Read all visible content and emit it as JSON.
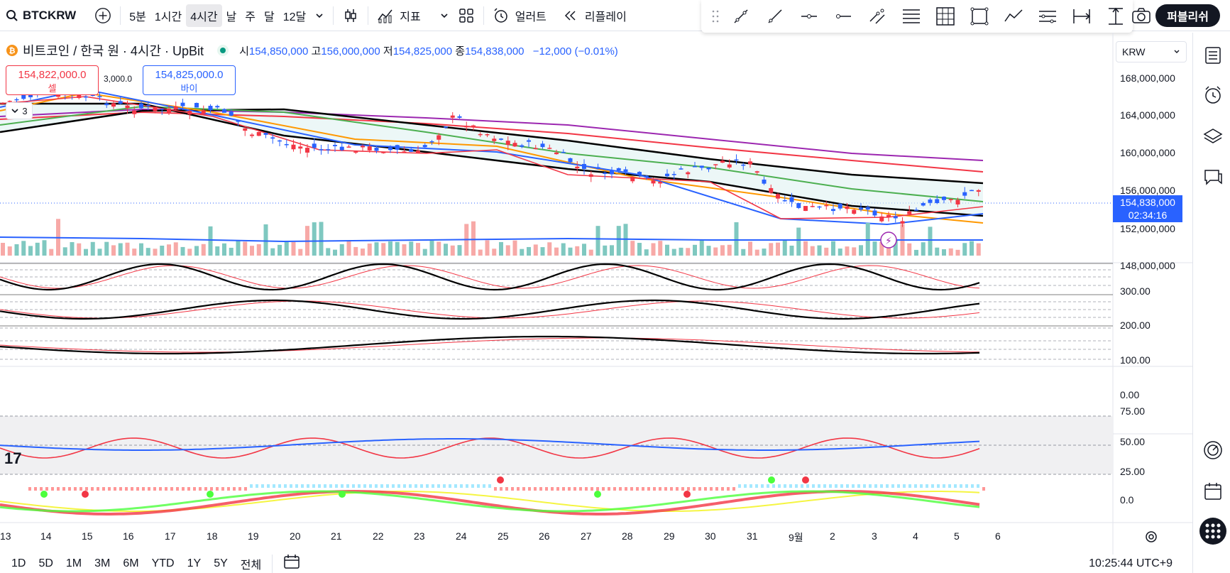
{
  "toolbar": {
    "symbol": "BTCKRW",
    "intervals": [
      "5분",
      "1시간",
      "4시간",
      "날",
      "주",
      "달",
      "12달"
    ],
    "indicators_label": "지표",
    "alert_label": "얼러트",
    "replay_label": "리플레이",
    "publish_label": "퍼블리쉬"
  },
  "legend": {
    "title": "비트코인 / 한국 원 · 4시간 · UpBit",
    "open_label": "시",
    "open": "154,850,000",
    "high_label": "고",
    "high": "156,000,000",
    "low_label": "저",
    "low": "154,825,000",
    "close_label": "종",
    "close": "154,838,000",
    "change": "−12,000 (−0.01%)"
  },
  "trade": {
    "sell_price": "154,822,000.0",
    "sell_label": "셀",
    "spread": "3,000.0",
    "buy_price": "154,825,000.0",
    "buy_label": "바이"
  },
  "collapse_count": "3",
  "currency": "KRW",
  "price_axis": [
    "168,000,000",
    "164,000,000",
    "160,000,000",
    "156,000,000",
    "152,000,000",
    "148,000,000"
  ],
  "last_price": {
    "price": "154,838,000",
    "countdown": "02:34:16"
  },
  "stoch_axis": [
    "300.00",
    "200.00",
    "100.00",
    "0.00"
  ],
  "rsi_axis": [
    "75.00",
    "50.00",
    "25.00"
  ],
  "wave_axis": [
    "0.0"
  ],
  "time_axis": [
    "13",
    "14",
    "15",
    "16",
    "17",
    "18",
    "19",
    "20",
    "21",
    "22",
    "23",
    "24",
    "25",
    "26",
    "27",
    "28",
    "29",
    "30",
    "31",
    "9월",
    "2",
    "3",
    "4",
    "5",
    "6"
  ],
  "bottom": {
    "ranges": [
      "1D",
      "5D",
      "1M",
      "3M",
      "6M",
      "YTD",
      "1Y",
      "5Y",
      "전체"
    ],
    "clock": "10:25:44 UTC+9"
  },
  "colors": {
    "up": "#f23645",
    "down": "#2962ff",
    "accent": "#2962ff"
  }
}
